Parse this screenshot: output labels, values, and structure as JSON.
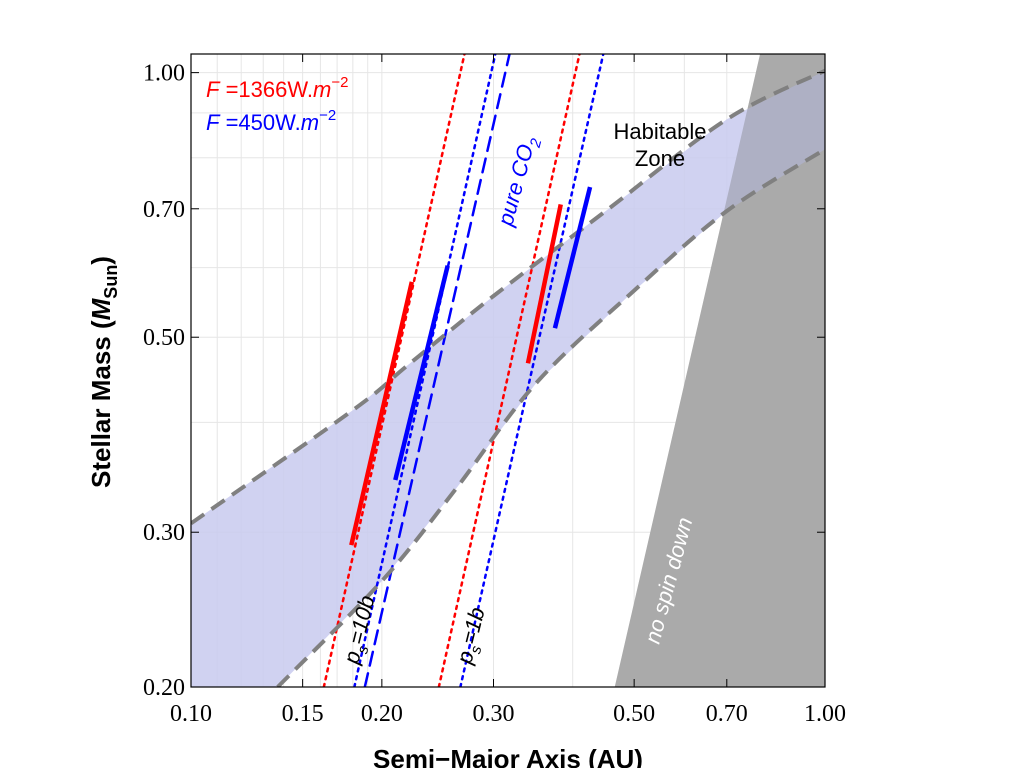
{
  "chart_data": {
    "type": "line",
    "xlabel": "Semi−Major Axis (AU)",
    "ylabel_main": "Stellar Mass (",
    "ylabel_var": "M",
    "ylabel_sub": "Sun",
    "ylabel_close": ")",
    "x_scale": "log",
    "y_scale": "log",
    "xlim": [
      0.1,
      1.0
    ],
    "ylim": [
      0.2,
      1.05
    ],
    "x_ticks": [
      0.1,
      0.15,
      0.2,
      0.3,
      0.5,
      0.7,
      1.0
    ],
    "x_tick_labels": [
      "0.10",
      "0.15",
      "0.20",
      "0.30",
      "0.50",
      "0.70",
      "1.00"
    ],
    "y_ticks": [
      0.2,
      0.3,
      0.5,
      0.7,
      1.0
    ],
    "y_tick_labels": [
      "0.20",
      "0.30",
      "0.50",
      "0.70",
      "1.00"
    ],
    "grid": true,
    "legend": [
      {
        "var": "F",
        "text": " =1366W.",
        "unit": "m",
        "exp": "−2",
        "color": "#ff0000"
      },
      {
        "var": "F",
        "text": " =450W.",
        "unit": "m",
        "exp": "−2",
        "color": "#0000ff"
      }
    ],
    "habitable_zone": {
      "inner_edge": {
        "x": [
          0.1,
          0.18,
          0.22,
          0.3,
          0.45,
          0.7,
          1.0
        ],
        "y": [
          0.307,
          0.413,
          0.465,
          0.557,
          0.695,
          0.885,
          1.005
        ]
      },
      "outer_edge": {
        "x": [
          0.137,
          0.2,
          0.26,
          0.35,
          0.5,
          0.7,
          1.0
        ],
        "y": [
          0.2,
          0.264,
          0.334,
          0.443,
          0.565,
          0.696,
          0.818
        ]
      },
      "color": "#c8caee",
      "edge_color": "#808080"
    },
    "no_spin_down": {
      "x": [
        0.466,
        0.79,
        1.0,
        1.0
      ],
      "y": [
        0.2,
        1.05,
        1.05,
        0.2
      ],
      "color": "#c0c0c0"
    },
    "lines": [
      {
        "name": "red-10b",
        "color": "#ff0000",
        "style": "dotted",
        "x": [
          0.162,
          0.27
        ],
        "y": [
          0.2,
          1.05
        ]
      },
      {
        "name": "blue-10b",
        "color": "#0000ff",
        "style": "dotted",
        "x": [
          0.181,
          0.302
        ],
        "y": [
          0.2,
          1.05
        ]
      },
      {
        "name": "blue-co2-10b",
        "color": "#0000ff",
        "style": "dashed",
        "x": [
          0.188,
          0.318
        ],
        "y": [
          0.2,
          1.05
        ]
      },
      {
        "name": "red-1b",
        "color": "#ff0000",
        "style": "dotted",
        "x": [
          0.246,
          0.41
        ],
        "y": [
          0.2,
          1.05
        ]
      },
      {
        "name": "blue-1b",
        "color": "#0000ff",
        "style": "dotted",
        "x": [
          0.266,
          0.447
        ],
        "y": [
          0.2,
          1.05
        ]
      }
    ],
    "hz_segments": [
      {
        "color": "#ff0000",
        "x": [
          0.179,
          0.223
        ],
        "y": [
          0.29,
          0.578
        ]
      },
      {
        "color": "#0000ff",
        "x": [
          0.21,
          0.254
        ],
        "y": [
          0.344,
          0.603
        ]
      },
      {
        "color": "#ff0000",
        "x": [
          0.34,
          0.383
        ],
        "y": [
          0.467,
          0.708
        ]
      },
      {
        "color": "#0000ff",
        "x": [
          0.375,
          0.426
        ],
        "y": [
          0.512,
          0.741
        ]
      }
    ],
    "annotations": {
      "hz_line1": "Habitable",
      "hz_line2": "Zone",
      "co2_main": "pure CO",
      "co2_sub": "2",
      "ps10_var": "p",
      "ps10_sub": "s",
      "ps10_text": "=10b",
      "ps1_var": "p",
      "ps1_sub": "s",
      "ps1_text": "=1b",
      "no_spin": "no spin down"
    }
  }
}
